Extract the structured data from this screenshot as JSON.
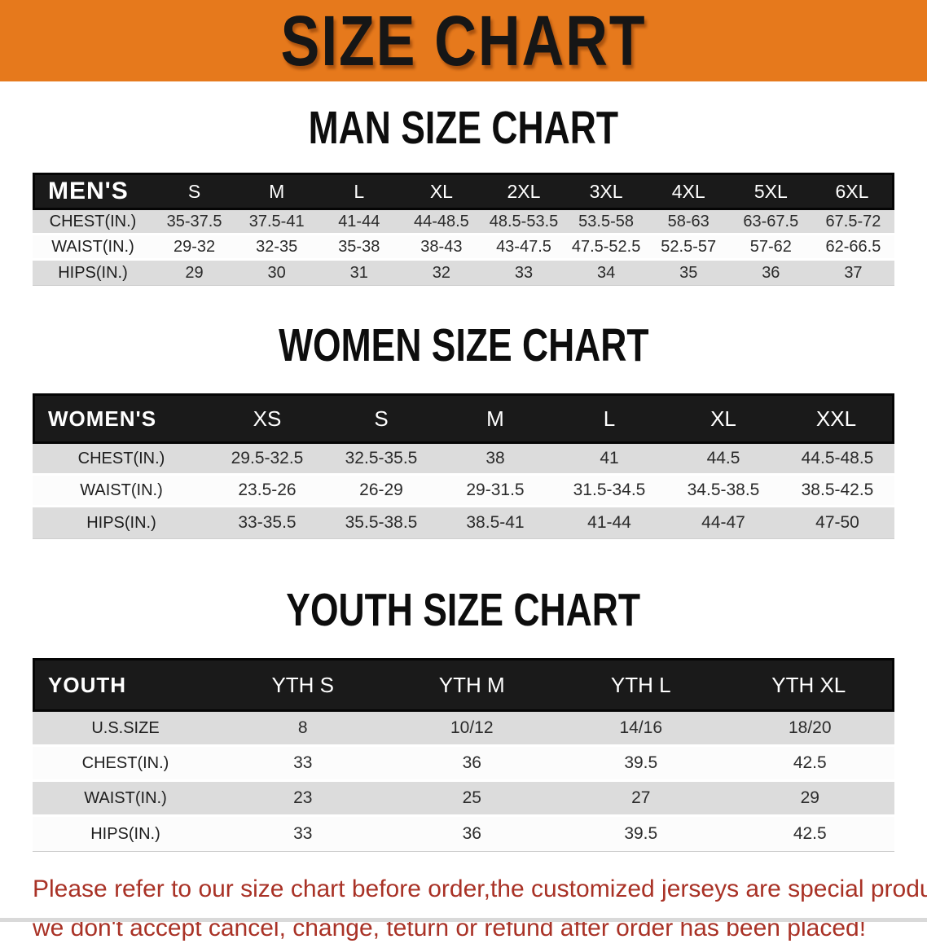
{
  "banner": {
    "title": "SIZE CHART",
    "bg_color": "#E6791C"
  },
  "colors": {
    "banner_orange": "#E6791C",
    "table_header_black": "#1A1A1A",
    "row_gray": "#DCDCDC",
    "row_white": "#FCFCFC",
    "note_red": "#A93226"
  },
  "sections": [
    {
      "id": "men",
      "heading": "MAN SIZE CHART",
      "table": {
        "header_label": "MEN'S",
        "columns": [
          "S",
          "M",
          "L",
          "XL",
          "2XL",
          "3XL",
          "4XL",
          "5XL",
          "6XL"
        ],
        "rows": [
          {
            "label": "CHEST(IN.)",
            "values": [
              "35-37.5",
              "37.5-41",
              "41-44",
              "44-48.5",
              "48.5-53.5",
              "53.5-58",
              "58-63",
              "63-67.5",
              "67.5-72"
            ]
          },
          {
            "label": "WAIST(IN.)",
            "values": [
              "29-32",
              "32-35",
              "35-38",
              "38-43",
              "43-47.5",
              "47.5-52.5",
              "52.5-57",
              "57-62",
              "62-66.5"
            ]
          },
          {
            "label": "HIPS(IN.)",
            "values": [
              "29",
              "30",
              "31",
              "32",
              "33",
              "34",
              "35",
              "36",
              "37"
            ]
          }
        ]
      }
    },
    {
      "id": "women",
      "heading": "WOMEN SIZE CHART",
      "table": {
        "header_label": "WOMEN'S",
        "columns": [
          "XS",
          "S",
          "M",
          "L",
          "XL",
          "XXL"
        ],
        "rows": [
          {
            "label": "CHEST(IN.)",
            "values": [
              "29.5-32.5",
              "32.5-35.5",
              "38",
              "41",
              "44.5",
              "44.5-48.5"
            ]
          },
          {
            "label": "WAIST(IN.)",
            "values": [
              "23.5-26",
              "26-29",
              "29-31.5",
              "31.5-34.5",
              "34.5-38.5",
              "38.5-42.5"
            ]
          },
          {
            "label": "HIPS(IN.)",
            "values": [
              "33-35.5",
              "35.5-38.5",
              "38.5-41",
              "41-44",
              "44-47",
              "47-50"
            ]
          }
        ]
      }
    },
    {
      "id": "youth",
      "heading": "YOUTH SIZE CHART",
      "table": {
        "header_label": "YOUTH",
        "columns": [
          "YTH S",
          "YTH M",
          "YTH L",
          "YTH XL"
        ],
        "rows": [
          {
            "label": "U.S.SIZE",
            "values": [
              "8",
              "10/12",
              "14/16",
              "18/20"
            ]
          },
          {
            "label": "CHEST(IN.)",
            "values": [
              "33",
              "36",
              "39.5",
              "42.5"
            ]
          },
          {
            "label": "WAIST(IN.)",
            "values": [
              "23",
              "25",
              "27",
              "29"
            ]
          },
          {
            "label": "HIPS(IN.)",
            "values": [
              "33",
              "36",
              "39.5",
              "42.5"
            ]
          }
        ]
      }
    }
  ],
  "footer": {
    "line1": "Please refer to our size chart before order,the customized jerseys are special products,",
    "line2": "we don't accept cancel, change, teturn or refund after order has been placed!"
  }
}
